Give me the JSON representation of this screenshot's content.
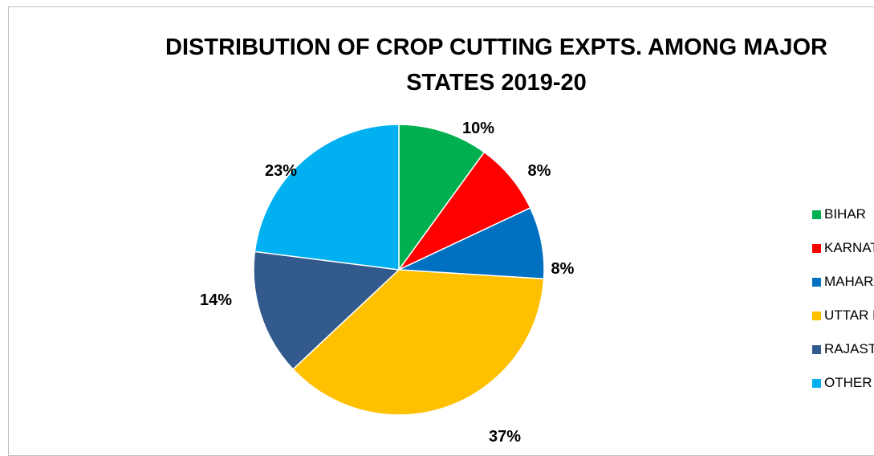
{
  "chart_data": {
    "type": "pie",
    "title_lines": [
      "DISTRIBUTION OF CROP CUTTING EXPTS. AMONG MAJOR",
      "STATES 2019-20"
    ],
    "slices": [
      {
        "label": "BIHAR",
        "value": 10,
        "display": "10%",
        "color": "#00b050"
      },
      {
        "label": "KARNATAKA",
        "value": 8,
        "display": "8%",
        "color": "#ff0000"
      },
      {
        "label": "MAHARASHTRA",
        "value": 8,
        "display": "8%",
        "color": "#0070c0"
      },
      {
        "label": "UTTAR PRADESH",
        "value": 37,
        "display": "37%",
        "color": "#ffc000"
      },
      {
        "label": "RAJASTHAN",
        "value": 14,
        "display": "14%",
        "color": "#335a8c"
      },
      {
        "label": "OTHER",
        "value": 23,
        "display": "23%",
        "color": "#00b0f0"
      }
    ],
    "legend_position": "right"
  }
}
